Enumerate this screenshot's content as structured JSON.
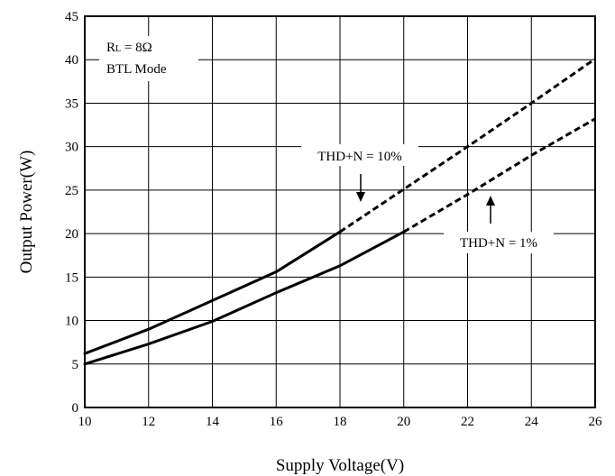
{
  "chart_data": {
    "type": "line",
    "title": "",
    "xlabel": "Supply Voltage(V)",
    "ylabel": "Output Power(W)",
    "xlim": [
      10,
      26
    ],
    "ylim": [
      0,
      45
    ],
    "xticks": [
      "10",
      "12",
      "14",
      "16",
      "18",
      "20",
      "22",
      "24",
      "26"
    ],
    "yticks": [
      "0",
      "5",
      "10",
      "15",
      "20",
      "25",
      "30",
      "35",
      "40",
      "45"
    ],
    "grid": true,
    "legend": "none",
    "annotations": {
      "condition_prefix": "R",
      "condition_sub": "L",
      "condition_value": " = 8Ω",
      "mode": "BTL Mode"
    },
    "series": [
      {
        "name": "THD+N = 10%",
        "solid": {
          "x": [
            10,
            12,
            14,
            16,
            18
          ],
          "y": [
            6.2,
            9.0,
            12.3,
            15.6,
            20.2
          ]
        },
        "dashed": {
          "x": [
            18,
            20,
            22,
            24,
            26
          ],
          "y": [
            20.2,
            25.1,
            30.0,
            35.0,
            40.1
          ]
        }
      },
      {
        "name": "THD+N = 1%",
        "solid": {
          "x": [
            10,
            12,
            14,
            16,
            18,
            20
          ],
          "y": [
            5.0,
            7.3,
            9.9,
            13.2,
            16.3,
            20.2
          ]
        },
        "dashed": {
          "x": [
            20,
            22,
            24,
            26
          ],
          "y": [
            20.2,
            24.5,
            29.0,
            33.2
          ]
        }
      }
    ],
    "colors": {
      "line": "#000000",
      "grid": "#000000",
      "background": "#ffffff"
    }
  }
}
